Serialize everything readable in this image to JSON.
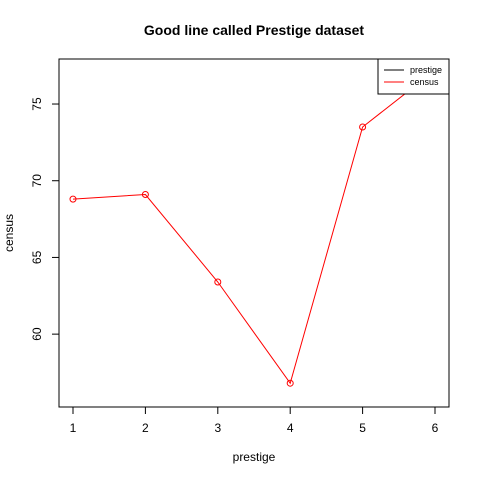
{
  "chart_data": {
    "type": "line",
    "title": "Good line called Prestige dataset",
    "xlabel": "prestige",
    "ylabel": "census",
    "x": [
      1,
      2,
      3,
      4,
      5,
      6
    ],
    "xlim": [
      1,
      6
    ],
    "ylim": [
      56,
      78
    ],
    "xticks": [
      1,
      2,
      3,
      4,
      5,
      6
    ],
    "yticks": [
      60,
      65,
      70,
      75
    ],
    "grid": false,
    "legend_position": "top-right",
    "legend": [
      {
        "label": "prestige",
        "color": "#000000"
      },
      {
        "label": "census",
        "color": "#ff0000"
      }
    ],
    "series": [
      {
        "name": "census",
        "color": "#ff0000",
        "marker": "open-circle",
        "values": [
          68.8,
          69.1,
          63.4,
          56.8,
          73.5,
          77.2
        ]
      }
    ]
  }
}
